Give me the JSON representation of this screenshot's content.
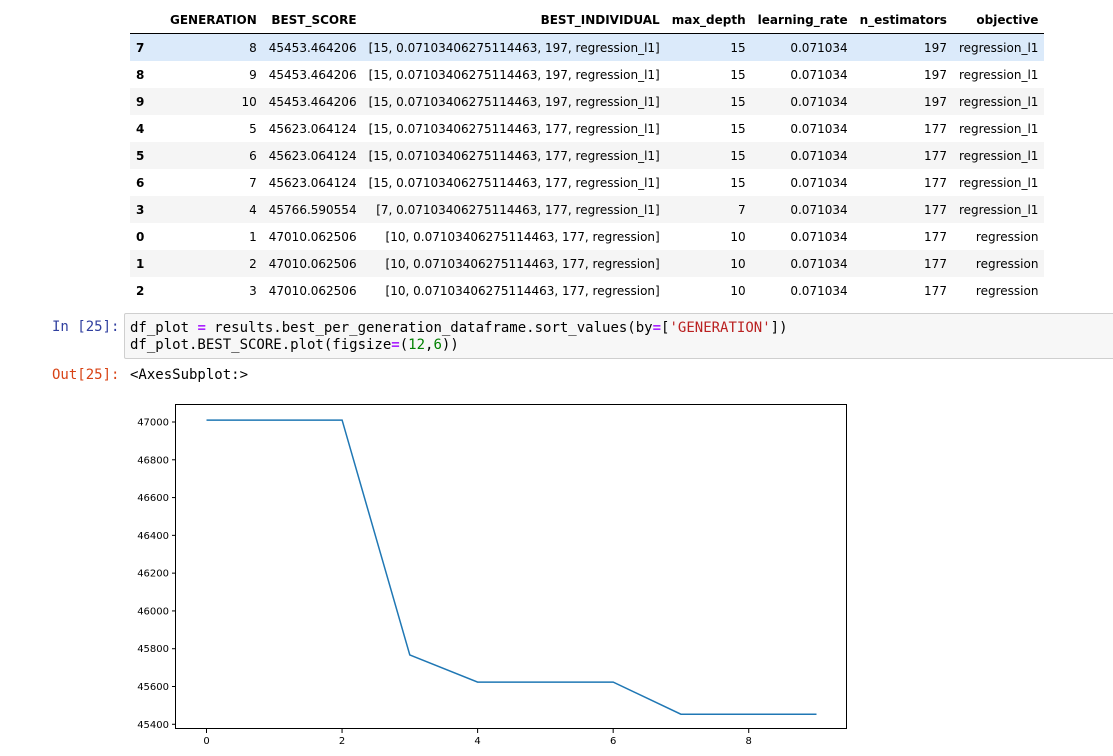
{
  "table": {
    "columns": [
      "",
      "GENERATION",
      "BEST_SCORE",
      "BEST_INDIVIDUAL",
      "max_depth",
      "learning_rate",
      "n_estimators",
      "objective"
    ],
    "rows": [
      {
        "index": "7",
        "generation": "8",
        "best_score": "45453.464206",
        "best_individual": "[15, 0.07103406275114463, 197, regression_l1]",
        "max_depth": "15",
        "learning_rate": "0.071034",
        "n_estimators": "197",
        "objective": "regression_l1"
      },
      {
        "index": "8",
        "generation": "9",
        "best_score": "45453.464206",
        "best_individual": "[15, 0.07103406275114463, 197, regression_l1]",
        "max_depth": "15",
        "learning_rate": "0.071034",
        "n_estimators": "197",
        "objective": "regression_l1"
      },
      {
        "index": "9",
        "generation": "10",
        "best_score": "45453.464206",
        "best_individual": "[15, 0.07103406275114463, 197, regression_l1]",
        "max_depth": "15",
        "learning_rate": "0.071034",
        "n_estimators": "197",
        "objective": "regression_l1"
      },
      {
        "index": "4",
        "generation": "5",
        "best_score": "45623.064124",
        "best_individual": "[15, 0.07103406275114463, 177, regression_l1]",
        "max_depth": "15",
        "learning_rate": "0.071034",
        "n_estimators": "177",
        "objective": "regression_l1"
      },
      {
        "index": "5",
        "generation": "6",
        "best_score": "45623.064124",
        "best_individual": "[15, 0.07103406275114463, 177, regression_l1]",
        "max_depth": "15",
        "learning_rate": "0.071034",
        "n_estimators": "177",
        "objective": "regression_l1"
      },
      {
        "index": "6",
        "generation": "7",
        "best_score": "45623.064124",
        "best_individual": "[15, 0.07103406275114463, 177, regression_l1]",
        "max_depth": "15",
        "learning_rate": "0.071034",
        "n_estimators": "177",
        "objective": "regression_l1"
      },
      {
        "index": "3",
        "generation": "4",
        "best_score": "45766.590554",
        "best_individual": "[7, 0.07103406275114463, 177, regression_l1]",
        "max_depth": "7",
        "learning_rate": "0.071034",
        "n_estimators": "177",
        "objective": "regression_l1"
      },
      {
        "index": "0",
        "generation": "1",
        "best_score": "47010.062506",
        "best_individual": "[10, 0.07103406275114463, 177, regression]",
        "max_depth": "10",
        "learning_rate": "0.071034",
        "n_estimators": "177",
        "objective": "regression"
      },
      {
        "index": "1",
        "generation": "2",
        "best_score": "47010.062506",
        "best_individual": "[10, 0.07103406275114463, 177, regression]",
        "max_depth": "10",
        "learning_rate": "0.071034",
        "n_estimators": "177",
        "objective": "regression"
      },
      {
        "index": "2",
        "generation": "3",
        "best_score": "47010.062506",
        "best_individual": "[10, 0.07103406275114463, 177, regression]",
        "max_depth": "10",
        "learning_rate": "0.071034",
        "n_estimators": "177",
        "objective": "regression"
      }
    ]
  },
  "input_cell": {
    "prompt": "In [25]:",
    "line1_a": "df_plot ",
    "line1_eq": "=",
    "line1_b": " results.best_per_generation_dataframe.sort_values(by",
    "line1_eq2": "=",
    "line1_c": "[",
    "line1_str": "'GENERATION'",
    "line1_d": "])",
    "line2_a": "df_plot.BEST_SCORE.plot(figsize",
    "line2_eq": "=",
    "line2_b": "(",
    "line2_n1": "12",
    "line2_c": ",",
    "line2_n2": "6",
    "line2_d": "))"
  },
  "output_cell": {
    "prompt": "Out[25]:",
    "text": "<AxesSubplot:>"
  },
  "colors": {
    "line": "#1f77b4",
    "in_prompt": "#303f9f",
    "out_prompt": "#d84315",
    "row_hover": "#dbeafa"
  },
  "chart_data": {
    "type": "line",
    "x": [
      0,
      1,
      2,
      3,
      4,
      5,
      6,
      7,
      8,
      9
    ],
    "series": [
      {
        "values": [
          47010.062506,
          47010.062506,
          47010.062506,
          45766.590554,
          45623.064124,
          45623.064124,
          45623.064124,
          45453.464206,
          45453.464206,
          45453.464206
        ]
      }
    ],
    "xticks": [
      0,
      2,
      4,
      6,
      8
    ],
    "yticks": [
      45400,
      45600,
      45800,
      46000,
      46200,
      46400,
      46600,
      46800,
      47000
    ],
    "xlim": [
      -0.45,
      9.45
    ],
    "ylim": [
      45375,
      47090
    ],
    "grid": false,
    "title": "",
    "xlabel": "",
    "ylabel": ""
  }
}
